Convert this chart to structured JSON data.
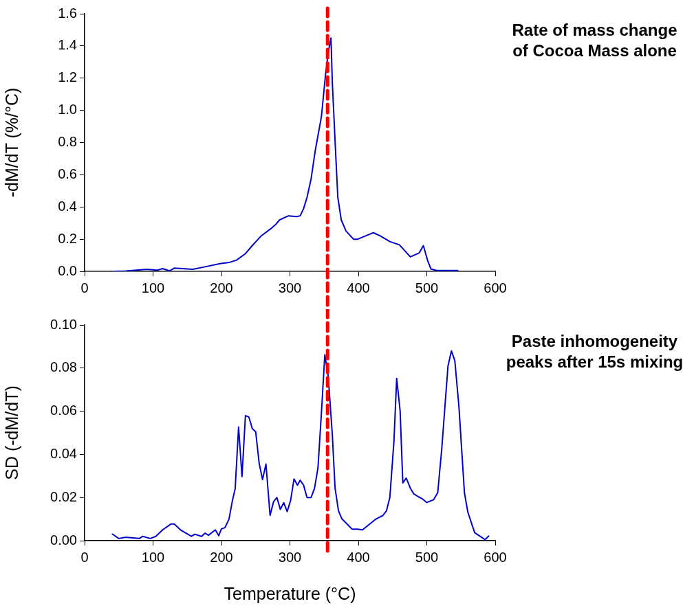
{
  "chart_data": [
    {
      "type": "line",
      "ylabel": "-dM/dT (%/°C)",
      "annotations": [
        "Rate of mass change\nof Cocoa Mass alone"
      ],
      "xlim": [
        0,
        600
      ],
      "xticks": [
        0,
        100,
        200,
        300,
        400,
        500,
        600
      ],
      "ylim": [
        0,
        1.6
      ],
      "yticks": [
        {
          "value": 0,
          "label": "0.0"
        },
        {
          "value": 0.2,
          "label": "0.2"
        },
        {
          "value": 0.4,
          "label": "0.4"
        },
        {
          "value": 0.6,
          "label": "0.6"
        },
        {
          "value": 0.8,
          "label": "0.8"
        },
        {
          "value": 1,
          "label": "1.0"
        },
        {
          "value": 1.2,
          "label": "1.2"
        },
        {
          "value": 1.4,
          "label": "1.4"
        },
        {
          "value": 1.6,
          "label": "1.6"
        }
      ],
      "grid": false,
      "legend": false,
      "marker": "none",
      "ref_lines": [
        {
          "axis": "x",
          "value": 355,
          "color": "#ff0000",
          "line_style": "dashed"
        }
      ],
      "series": [
        {
          "color": "#0000cc",
          "x": [
            40,
            60,
            91,
            106,
            114,
            124,
            131,
            158,
            171,
            198,
            211,
            222,
            235,
            245,
            258,
            272,
            279,
            285,
            298,
            310,
            315,
            320,
            325,
            331,
            337,
            346,
            352,
            356,
            360,
            362,
            367,
            370,
            375,
            382,
            393,
            399,
            419,
            422,
            432,
            446,
            460,
            476,
            489,
            495,
            501,
            506,
            514,
            546
          ],
          "values": [
            0,
            0.002,
            0.013,
            0.007,
            0.017,
            0.003,
            0.02,
            0.013,
            0.024,
            0.048,
            0.055,
            0.07,
            0.11,
            0.16,
            0.22,
            0.265,
            0.29,
            0.32,
            0.345,
            0.34,
            0.345,
            0.39,
            0.46,
            0.575,
            0.75,
            0.96,
            1.22,
            1.36,
            1.45,
            1.17,
            0.72,
            0.46,
            0.32,
            0.25,
            0.2,
            0.2,
            0.235,
            0.24,
            0.22,
            0.185,
            0.165,
            0.09,
            0.115,
            0.16,
            0.07,
            0.015,
            0.005,
            0.005
          ]
        }
      ]
    },
    {
      "type": "line",
      "xlabel": "Temperature (°C)",
      "ylabel": "SD (-dM/dT)",
      "annotations": [
        "Paste inhomogeneity\npeaks after 15s mixing"
      ],
      "xlim": [
        0,
        600
      ],
      "xticks": [
        0,
        100,
        200,
        300,
        400,
        500,
        600
      ],
      "ylim": [
        0,
        0.1
      ],
      "yticks": [
        {
          "value": 0,
          "label": "0.00"
        },
        {
          "value": 0.02,
          "label": "0.02"
        },
        {
          "value": 0.04,
          "label": "0.04"
        },
        {
          "value": 0.06,
          "label": "0.06"
        },
        {
          "value": 0.08,
          "label": "0.08"
        },
        {
          "value": 0.1,
          "label": "0.10"
        }
      ],
      "grid": false,
      "legend": false,
      "marker": "none",
      "ref_lines": [
        {
          "axis": "x",
          "value": 355,
          "color": "#ff0000",
          "line_style": "dashed"
        }
      ],
      "series": [
        {
          "color": "#0000cc",
          "x": [
            40,
            50,
            60,
            80,
            85,
            96,
            104,
            114,
            126,
            131,
            141,
            156,
            161,
            171,
            176,
            181,
            191,
            196,
            200,
            205,
            211,
            216,
            220,
            225,
            230,
            235,
            240,
            245,
            250,
            255,
            260,
            265,
            271,
            276,
            281,
            286,
            291,
            296,
            301,
            306,
            311,
            315,
            320,
            325,
            331,
            336,
            341,
            346,
            351,
            356,
            362,
            366,
            371,
            376,
            391,
            399,
            406,
            426,
            436,
            441,
            446,
            452,
            456,
            461,
            465,
            470,
            476,
            481,
            488,
            493,
            500,
            510,
            516,
            522,
            527,
            531,
            536,
            541,
            547,
            555,
            560,
            570,
            585,
            591
          ],
          "values": [
            0.0032,
            0.001,
            0.0016,
            0.001,
            0.002,
            0.001,
            0.002,
            0.005,
            0.0077,
            0.0077,
            0.0048,
            0.002,
            0.003,
            0.002,
            0.0035,
            0.0025,
            0.005,
            0.0023,
            0.0055,
            0.006,
            0.01,
            0.0186,
            0.024,
            0.0527,
            0.0297,
            0.058,
            0.0573,
            0.052,
            0.0505,
            0.036,
            0.0283,
            0.0355,
            0.0117,
            0.018,
            0.02,
            0.0145,
            0.0176,
            0.0135,
            0.0186,
            0.0286,
            0.0257,
            0.028,
            0.0257,
            0.02,
            0.02,
            0.0243,
            0.0338,
            0.059,
            0.0862,
            0.0762,
            0.049,
            0.0243,
            0.0138,
            0.0101,
            0.0053,
            0.0053,
            0.005,
            0.0101,
            0.0117,
            0.0138,
            0.02,
            0.046,
            0.0752,
            0.0604,
            0.0268,
            0.029,
            0.0243,
            0.0217,
            0.0203,
            0.0195,
            0.0177,
            0.019,
            0.0223,
            0.043,
            0.0643,
            0.081,
            0.088,
            0.0834,
            0.062,
            0.0223,
            0.0132,
            0.0037,
            0.0005,
            0.0023
          ]
        }
      ]
    }
  ]
}
